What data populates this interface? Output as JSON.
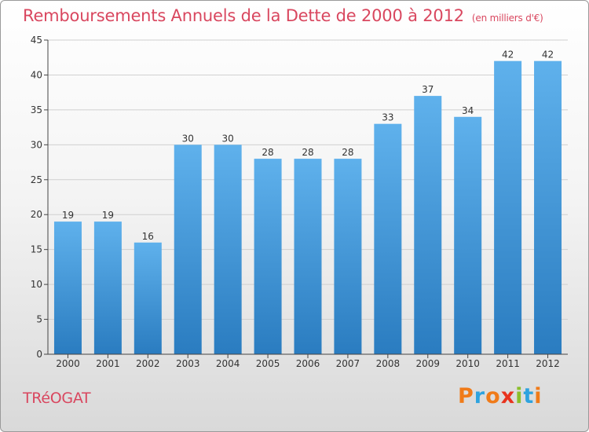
{
  "title": "Remboursements Annuels de la Dette de 2000 à 2012",
  "unit_note": "(en milliers d'€)",
  "commune": "TRéOGAT",
  "logo": {
    "letters": [
      "P",
      "r",
      "o",
      "x",
      "i",
      "t",
      "i"
    ],
    "colors": [
      "#f07b19",
      "#2ea3df",
      "#f07b19",
      "#e8331e",
      "#8bbf2a",
      "#2ea3df",
      "#f07b19"
    ]
  },
  "colors": {
    "bar_light": "#5fb1ec",
    "bar_dark": "#2a7cc0",
    "title": "#d9475f",
    "grid": "#d0d0d0",
    "axis": "#444444"
  },
  "chart_data": {
    "type": "bar",
    "categories": [
      "2000",
      "2001",
      "2002",
      "2003",
      "2004",
      "2005",
      "2006",
      "2007",
      "2008",
      "2009",
      "2010",
      "2011",
      "2012"
    ],
    "values": [
      19,
      19,
      16,
      30,
      30,
      28,
      28,
      28,
      33,
      37,
      34,
      42,
      42
    ],
    "title": "Remboursements Annuels de la Dette de 2000 à 2012",
    "xlabel": "",
    "ylabel": "",
    "ylim": [
      0,
      45
    ],
    "yticks": [
      0,
      5,
      10,
      15,
      20,
      25,
      30,
      35,
      40,
      45
    ],
    "grid": true,
    "data_labels": true
  }
}
